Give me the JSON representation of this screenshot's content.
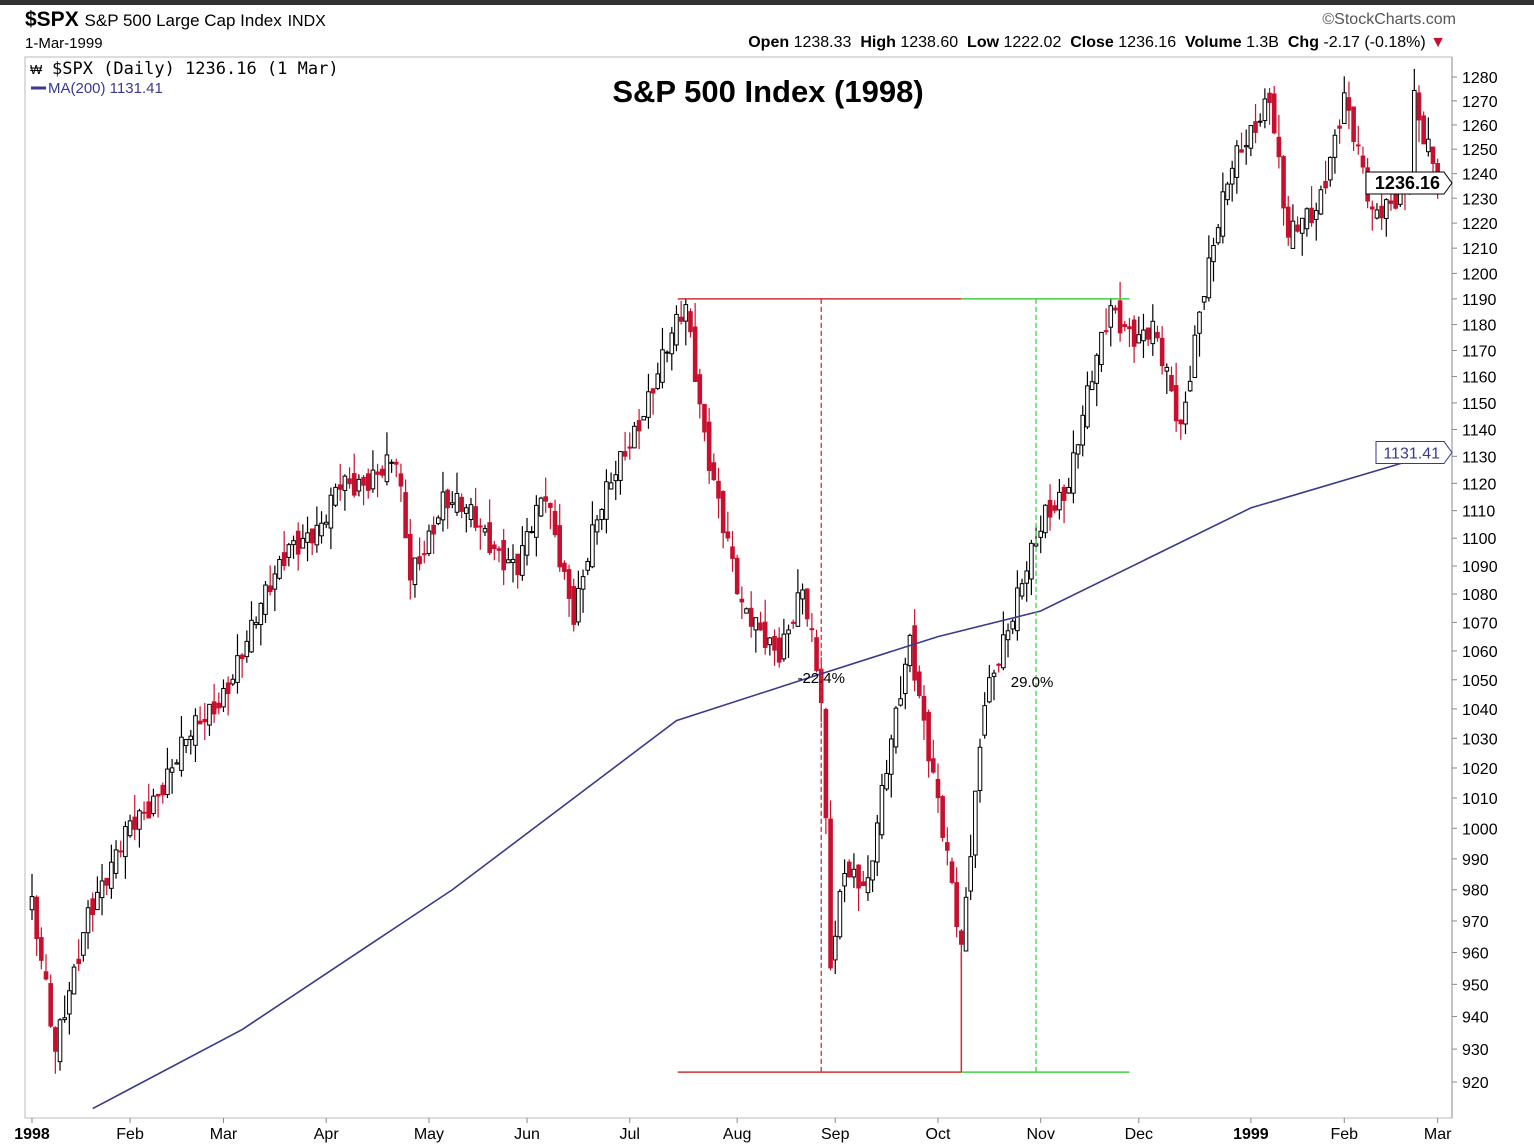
{
  "header": {
    "symbol": "$SPX",
    "description": "S&P 500 Large Cap Index",
    "exchange": "INDX",
    "date": "1-Mar-1999",
    "copyright": "©StockCharts.com",
    "open_label": "Open",
    "open": "1238.33",
    "high_label": "High",
    "high": "1238.60",
    "low_label": "Low",
    "low": "1222.02",
    "close_label": "Close",
    "close": "1236.16",
    "volume_label": "Volume",
    "volume": "1.3B",
    "chg_label": "Chg",
    "chg": "-2.17 (-0.18%)"
  },
  "legend": {
    "price": "$SPX (Daily) 1236.16 (1 Mar)",
    "ma": "MA(200) 1131.41"
  },
  "colors": {
    "up": "#000000",
    "down": "#c8102e",
    "ma": "#3a3a8c",
    "decline": "#d03030",
    "rally": "#40d040"
  },
  "chart_data": {
    "type": "candlestick",
    "title": "S&P 500 Index (1998)",
    "yscale": "log",
    "ylim": [
      915,
      1290
    ],
    "yticks": [
      920,
      930,
      940,
      950,
      960,
      970,
      980,
      990,
      1000,
      1010,
      1020,
      1030,
      1040,
      1050,
      1060,
      1070,
      1080,
      1090,
      1100,
      1110,
      1120,
      1130,
      1140,
      1150,
      1160,
      1170,
      1180,
      1190,
      1200,
      1210,
      1220,
      1230,
      1240,
      1250,
      1260,
      1270,
      1280
    ],
    "xticks": [
      {
        "label": "1998",
        "date": "1998-01-02",
        "bold": true
      },
      {
        "label": "Feb",
        "date": "1998-02-02"
      },
      {
        "label": "Mar",
        "date": "1998-03-02"
      },
      {
        "label": "Apr",
        "date": "1998-04-01"
      },
      {
        "label": "May",
        "date": "1998-05-01"
      },
      {
        "label": "Jun",
        "date": "1998-06-01"
      },
      {
        "label": "Jul",
        "date": "1998-07-01"
      },
      {
        "label": "Aug",
        "date": "1998-08-03"
      },
      {
        "label": "Sep",
        "date": "1998-09-01"
      },
      {
        "label": "Oct",
        "date": "1998-10-01"
      },
      {
        "label": "Nov",
        "date": "1998-11-02"
      },
      {
        "label": "Dec",
        "date": "1998-12-01"
      },
      {
        "label": "1999",
        "date": "1999-01-04",
        "bold": true
      },
      {
        "label": "Feb",
        "date": "1999-02-01"
      },
      {
        "label": "Mar",
        "date": "1999-03-01"
      }
    ],
    "close_anchors": [
      [
        "1998-01-02",
        975
      ],
      [
        "1998-01-09",
        927
      ],
      [
        "1998-01-12",
        935
      ],
      [
        "1998-01-20",
        975
      ],
      [
        "1998-01-27",
        985
      ],
      [
        "1998-02-02",
        1000
      ],
      [
        "1998-02-13",
        1020
      ],
      [
        "1998-03-02",
        1047
      ],
      [
        "1998-03-10",
        1065
      ],
      [
        "1998-03-20",
        1100
      ],
      [
        "1998-03-31",
        1101
      ],
      [
        "1998-04-06",
        1120
      ],
      [
        "1998-04-22",
        1126
      ],
      [
        "1998-04-27",
        1086
      ],
      [
        "1998-05-06",
        1115
      ],
      [
        "1998-05-15",
        1105
      ],
      [
        "1998-05-28",
        1090
      ],
      [
        "1998-06-05",
        1115
      ],
      [
        "1998-06-15",
        1075
      ],
      [
        "1998-06-19",
        1100
      ],
      [
        "1998-06-30",
        1133
      ],
      [
        "1998-07-10",
        1165
      ],
      [
        "1998-07-17",
        1186
      ],
      [
        "1998-07-23",
        1140
      ],
      [
        "1998-08-04",
        1072
      ],
      [
        "1998-08-14",
        1062
      ],
      [
        "1998-08-21",
        1080
      ],
      [
        "1998-08-27",
        1042
      ],
      [
        "1998-08-31",
        957
      ],
      [
        "1998-09-03",
        990
      ],
      [
        "1998-09-10",
        980
      ],
      [
        "1998-09-23",
        1066
      ],
      [
        "1998-09-30",
        1017
      ],
      [
        "1998-10-08",
        959
      ],
      [
        "1998-10-15",
        1047
      ],
      [
        "1998-10-23",
        1070
      ],
      [
        "1998-11-03",
        1111
      ],
      [
        "1998-11-10",
        1120
      ],
      [
        "1998-11-23",
        1188
      ],
      [
        "1998-12-01",
        1175
      ],
      [
        "1998-12-04",
        1176
      ],
      [
        "1998-12-14",
        1141
      ],
      [
        "1998-12-18",
        1188
      ],
      [
        "1998-12-29",
        1241
      ],
      [
        "1999-01-08",
        1275
      ],
      [
        "1999-01-14",
        1212
      ],
      [
        "1999-01-22",
        1225
      ],
      [
        "1999-02-01",
        1273
      ],
      [
        "1999-02-09",
        1220
      ],
      [
        "1999-02-19",
        1240
      ],
      [
        "1999-02-22",
        1272
      ],
      [
        "1999-02-24",
        1253
      ],
      [
        "1999-03-01",
        1236.16
      ]
    ],
    "ma200": [
      [
        "1998-01-21",
        912
      ],
      [
        "1998-03-06",
        936
      ],
      [
        "1998-05-08",
        980
      ],
      [
        "1998-07-15",
        1036
      ],
      [
        "1998-08-21",
        1050
      ],
      [
        "1998-10-01",
        1065
      ],
      [
        "1998-11-02",
        1074
      ],
      [
        "1999-01-04",
        1111
      ],
      [
        "1999-03-01",
        1131.41
      ]
    ],
    "last_price": "1236.16",
    "last_ma": "1131.41",
    "annotations": {
      "peak": 1190,
      "trough": 923,
      "start": "1998-07-17",
      "bottom": "1998-10-08",
      "recover": "1998-11-27",
      "decline_mid": "1998-08-27",
      "rally_mid": "1998-10-30",
      "decline_label": "-22.4%",
      "rally_label": "29.0%"
    }
  }
}
